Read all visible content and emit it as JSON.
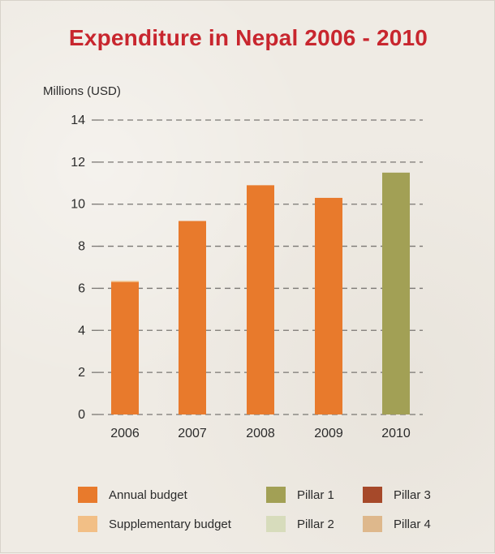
{
  "chart_data": {
    "type": "bar",
    "title": "Expenditure in Nepal 2006 - 2010",
    "ylabel": "Millions (USD)",
    "xlabel": "",
    "categories": [
      "2006",
      "2007",
      "2008",
      "2009",
      "2010"
    ],
    "ylim": [
      0,
      14
    ],
    "yticks": [
      0,
      2,
      4,
      6,
      8,
      10,
      12,
      14
    ],
    "grid": "dashed horizontal",
    "series": [
      {
        "name": "Annual budget",
        "color": "#e87a2c",
        "values": [
          6.3,
          9.2,
          10.9,
          10.3,
          0
        ]
      },
      {
        "name": "Supplementary budget",
        "color": "#f2bf86",
        "values": [
          0.05,
          0,
          0,
          0,
          0
        ]
      },
      {
        "name": "Pillar 1",
        "color": "#a2a055",
        "values": [
          0,
          0,
          0,
          0,
          11.5
        ]
      },
      {
        "name": "Pillar 2",
        "color": "#d7dcbc",
        "values": [
          0,
          0,
          0,
          0,
          0
        ]
      },
      {
        "name": "Pillar 3",
        "color": "#a6492a",
        "values": [
          0,
          0,
          0,
          0,
          0
        ]
      },
      {
        "name": "Pillar 4",
        "color": "#deb88c",
        "values": [
          0,
          0,
          0,
          0,
          0
        ]
      }
    ],
    "legend_position": "bottom"
  }
}
